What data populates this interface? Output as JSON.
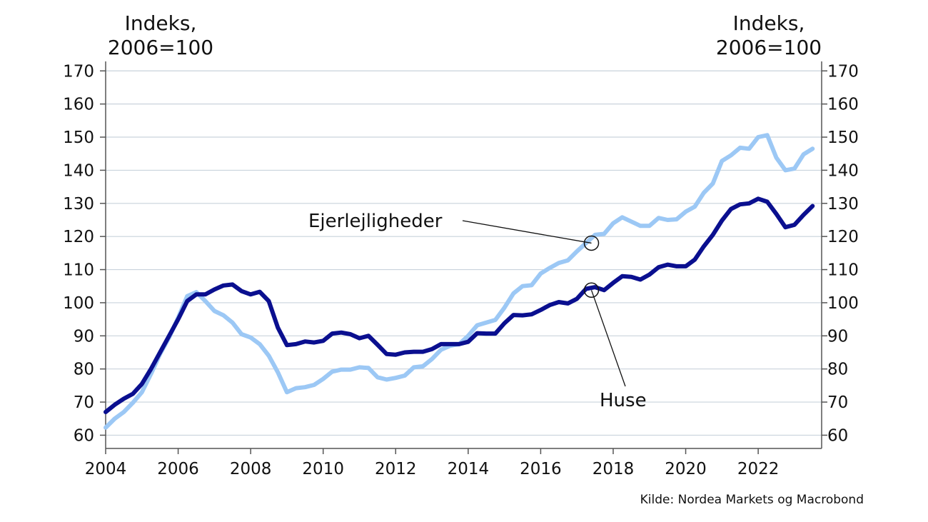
{
  "chart_data": {
    "type": "line",
    "title": "",
    "ylabel_left": [
      "Indeks,",
      "2006=100"
    ],
    "ylabel_right": [
      "Indeks,",
      "2006=100"
    ],
    "xlim": [
      2004.0,
      2023.75
    ],
    "ylim": [
      56,
      172
    ],
    "x_ticks": [
      2004,
      2006,
      2008,
      2010,
      2012,
      2014,
      2016,
      2018,
      2020,
      2022
    ],
    "y_ticks": [
      60,
      70,
      80,
      90,
      100,
      110,
      120,
      130,
      140,
      150,
      160,
      170
    ],
    "grid": "horizontal",
    "colors": {
      "huse": "#0a0f8f",
      "ejerlejligheder": "#9cc8f5",
      "grid": "#c9d3dc",
      "axis": "#555555"
    },
    "series": [
      {
        "name": "Huse",
        "key": "huse",
        "values": [
          [
            2004.0,
            67
          ],
          [
            2004.25,
            69.2
          ],
          [
            2004.5,
            71
          ],
          [
            2004.75,
            72.5
          ],
          [
            2005.0,
            75.5
          ],
          [
            2005.25,
            80
          ],
          [
            2005.5,
            85
          ],
          [
            2005.75,
            90
          ],
          [
            2006.0,
            95
          ],
          [
            2006.25,
            100.5
          ],
          [
            2006.5,
            102.5
          ],
          [
            2006.75,
            102.5
          ],
          [
            2007.0,
            104
          ],
          [
            2007.25,
            105.2
          ],
          [
            2007.5,
            105.5
          ],
          [
            2007.75,
            103.5
          ],
          [
            2008.0,
            102.5
          ],
          [
            2008.25,
            103.3
          ],
          [
            2008.5,
            100.5
          ],
          [
            2008.75,
            92.5
          ],
          [
            2009.0,
            87.2
          ],
          [
            2009.25,
            87.5
          ],
          [
            2009.5,
            88.3
          ],
          [
            2009.75,
            88
          ],
          [
            2010.0,
            88.5
          ],
          [
            2010.25,
            90.7
          ],
          [
            2010.5,
            91
          ],
          [
            2010.75,
            90.5
          ],
          [
            2011.0,
            89.3
          ],
          [
            2011.25,
            90
          ],
          [
            2011.5,
            87.3
          ],
          [
            2011.75,
            84.5
          ],
          [
            2012.0,
            84.3
          ],
          [
            2012.25,
            85
          ],
          [
            2012.5,
            85.2
          ],
          [
            2012.75,
            85.2
          ],
          [
            2013.0,
            86
          ],
          [
            2013.25,
            87.5
          ],
          [
            2013.5,
            87.5
          ],
          [
            2013.75,
            87.5
          ],
          [
            2014.0,
            88.2
          ],
          [
            2014.25,
            90.8
          ],
          [
            2014.5,
            90.7
          ],
          [
            2014.75,
            90.7
          ],
          [
            2015.0,
            93.8
          ],
          [
            2015.25,
            96.3
          ],
          [
            2015.5,
            96.2
          ],
          [
            2015.75,
            96.5
          ],
          [
            2016.0,
            97.8
          ],
          [
            2016.25,
            99.3
          ],
          [
            2016.5,
            100.2
          ],
          [
            2016.75,
            99.8
          ],
          [
            2017.0,
            101.2
          ],
          [
            2017.25,
            104.2
          ],
          [
            2017.5,
            104.7
          ],
          [
            2017.75,
            103.8
          ],
          [
            2018.0,
            106
          ],
          [
            2018.25,
            108
          ],
          [
            2018.5,
            107.8
          ],
          [
            2018.75,
            107
          ],
          [
            2019.0,
            108.5
          ],
          [
            2019.25,
            110.7
          ],
          [
            2019.5,
            111.5
          ],
          [
            2019.75,
            111
          ],
          [
            2020.0,
            111
          ],
          [
            2020.25,
            113
          ],
          [
            2020.5,
            117
          ],
          [
            2020.75,
            120.5
          ],
          [
            2021.0,
            124.8
          ],
          [
            2021.25,
            128.3
          ],
          [
            2021.5,
            129.7
          ],
          [
            2021.75,
            130
          ],
          [
            2022.0,
            131.4
          ],
          [
            2022.25,
            130.5
          ],
          [
            2022.5,
            126.8
          ],
          [
            2022.75,
            122.8
          ],
          [
            2023.0,
            123.5
          ],
          [
            2023.25,
            126.5
          ],
          [
            2023.5,
            129.2
          ]
        ]
      },
      {
        "name": "Ejerlejligheder",
        "key": "ejerlejligheder",
        "values": [
          [
            2004.0,
            62.3
          ],
          [
            2004.25,
            65
          ],
          [
            2004.5,
            67
          ],
          [
            2004.75,
            69.8
          ],
          [
            2005.0,
            73
          ],
          [
            2005.25,
            78.5
          ],
          [
            2005.5,
            84.5
          ],
          [
            2005.75,
            89.5
          ],
          [
            2006.0,
            95.5
          ],
          [
            2006.25,
            102
          ],
          [
            2006.5,
            103.2
          ],
          [
            2006.75,
            100.5
          ],
          [
            2007.0,
            97.5
          ],
          [
            2007.25,
            96.2
          ],
          [
            2007.5,
            94
          ],
          [
            2007.75,
            90.5
          ],
          [
            2008.0,
            89.5
          ],
          [
            2008.25,
            87.5
          ],
          [
            2008.5,
            84
          ],
          [
            2008.75,
            79
          ],
          [
            2009.0,
            73
          ],
          [
            2009.25,
            74.2
          ],
          [
            2009.5,
            74.5
          ],
          [
            2009.75,
            75.2
          ],
          [
            2010.0,
            77
          ],
          [
            2010.25,
            79.2
          ],
          [
            2010.5,
            79.8
          ],
          [
            2010.75,
            79.8
          ],
          [
            2011.0,
            80.5
          ],
          [
            2011.25,
            80.3
          ],
          [
            2011.5,
            77.5
          ],
          [
            2011.75,
            76.8
          ],
          [
            2012.0,
            77.3
          ],
          [
            2012.25,
            78
          ],
          [
            2012.5,
            80.5
          ],
          [
            2012.75,
            80.8
          ],
          [
            2013.0,
            83
          ],
          [
            2013.25,
            85.8
          ],
          [
            2013.5,
            87
          ],
          [
            2013.75,
            87.5
          ],
          [
            2014.0,
            90
          ],
          [
            2014.25,
            93.2
          ],
          [
            2014.5,
            94
          ],
          [
            2014.75,
            94.8
          ],
          [
            2015.0,
            98.5
          ],
          [
            2015.25,
            102.8
          ],
          [
            2015.5,
            105
          ],
          [
            2015.75,
            105.3
          ],
          [
            2016.0,
            108.8
          ],
          [
            2016.25,
            110.5
          ],
          [
            2016.5,
            112
          ],
          [
            2016.75,
            112.8
          ],
          [
            2017.0,
            115.5
          ],
          [
            2017.25,
            118
          ],
          [
            2017.5,
            120.5
          ],
          [
            2017.75,
            120.8
          ],
          [
            2018.0,
            124
          ],
          [
            2018.25,
            125.8
          ],
          [
            2018.5,
            124.5
          ],
          [
            2018.75,
            123.2
          ],
          [
            2019.0,
            123.2
          ],
          [
            2019.25,
            125.6
          ],
          [
            2019.5,
            125
          ],
          [
            2019.75,
            125.2
          ],
          [
            2020.0,
            127.5
          ],
          [
            2020.25,
            129
          ],
          [
            2020.5,
            133.2
          ],
          [
            2020.75,
            136
          ],
          [
            2021.0,
            142.8
          ],
          [
            2021.25,
            144.5
          ],
          [
            2021.5,
            146.8
          ],
          [
            2021.75,
            146.5
          ],
          [
            2022.0,
            150
          ],
          [
            2022.25,
            150.6
          ],
          [
            2022.5,
            143.8
          ],
          [
            2022.75,
            140
          ],
          [
            2023.0,
            140.5
          ],
          [
            2023.25,
            144.8
          ],
          [
            2023.5,
            146.5
          ]
        ]
      }
    ],
    "annotations": [
      {
        "text": "Ejerlejligheder",
        "series": "ejerlejligheder",
        "point": [
          2017.4,
          118
        ]
      },
      {
        "text": "Huse",
        "series": "huse",
        "point": [
          2017.4,
          103.8
        ]
      }
    ],
    "source": "Kilde: Nordea Markets og Macrobond"
  }
}
